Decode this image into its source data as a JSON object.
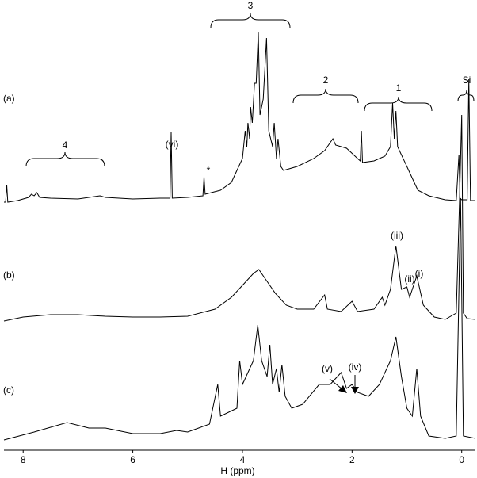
{
  "chart_data": {
    "type": "line",
    "xlabel": "H (ppm)",
    "xlim": [
      8.35,
      -0.25
    ],
    "xticks": [
      8,
      6,
      4,
      2,
      0
    ],
    "series": [
      {
        "name": "(a)",
        "color": "#000000",
        "x": [
          8.35,
          8.32,
          8.3,
          8.28,
          8.1,
          7.9,
          7.85,
          7.8,
          7.75,
          7.7,
          7.5,
          7.0,
          6.6,
          6.5,
          6.0,
          5.5,
          5.32,
          5.3,
          5.28,
          5.0,
          4.72,
          4.7,
          4.68,
          4.4,
          4.2,
          4.1,
          4.0,
          3.95,
          3.92,
          3.9,
          3.87,
          3.85,
          3.82,
          3.78,
          3.75,
          3.71,
          3.68,
          3.62,
          3.56,
          3.52,
          3.45,
          3.42,
          3.38,
          3.35,
          3.3,
          3.25,
          3.0,
          2.7,
          2.5,
          2.35,
          2.3,
          2.1,
          1.9,
          1.85,
          1.83,
          1.81,
          1.6,
          1.4,
          1.3,
          1.26,
          1.23,
          1.2,
          1.17,
          1.0,
          0.9,
          0.8,
          0.6,
          0.3,
          0.1,
          0.05,
          0.03,
          0.0,
          -0.1,
          -0.13,
          -0.16,
          -0.25
        ],
        "values": [
          0,
          0,
          22,
          0,
          2,
          6,
          10,
          8,
          12,
          6,
          5,
          4,
          8,
          6,
          4,
          5,
          5,
          88,
          5,
          6,
          8,
          32,
          10,
          15,
          25,
          40,
          55,
          90,
          70,
          100,
          80,
          120,
          100,
          150,
          150,
          215,
          110,
          130,
          207,
          90,
          70,
          100,
          55,
          80,
          45,
          40,
          45,
          55,
          65,
          80,
          72,
          68,
          55,
          52,
          90,
          50,
          52,
          58,
          70,
          125,
          80,
          115,
          70,
          45,
          30,
          15,
          8,
          3,
          2,
          60,
          5,
          3,
          3,
          155,
          2,
          2
        ]
      },
      {
        "name": "(b)",
        "color": "#000000",
        "x": [
          8.35,
          8.0,
          7.5,
          7.0,
          6.5,
          6.0,
          5.5,
          5.0,
          4.5,
          4.2,
          4.0,
          3.8,
          3.7,
          3.6,
          3.4,
          3.2,
          3.0,
          2.7,
          2.5,
          2.45,
          2.2,
          2.0,
          1.9,
          1.6,
          1.45,
          1.4,
          1.3,
          1.2,
          1.1,
          1.0,
          0.95,
          0.82,
          0.7,
          0.5,
          0.3,
          0.1,
          0.04,
          0.0,
          -0.03,
          -0.1,
          -0.25
        ],
        "values": [
          0,
          5,
          8,
          8,
          6,
          5,
          5,
          6,
          15,
          30,
          45,
          60,
          65,
          55,
          35,
          20,
          15,
          15,
          33,
          15,
          12,
          25,
          12,
          15,
          30,
          20,
          40,
          95,
          40,
          43,
          30,
          57,
          20,
          5,
          2,
          10,
          150,
          260,
          10,
          3,
          2
        ]
      },
      {
        "name": "(c)",
        "color": "#000000",
        "x": [
          8.35,
          7.8,
          7.2,
          6.8,
          6.5,
          6.0,
          5.5,
          5.2,
          5.0,
          4.6,
          4.45,
          4.4,
          4.1,
          4.05,
          4.0,
          3.9,
          3.8,
          3.72,
          3.65,
          3.55,
          3.5,
          3.45,
          3.38,
          3.33,
          3.28,
          3.22,
          3.1,
          2.9,
          2.6,
          2.4,
          2.2,
          2.1,
          2.0,
          1.9,
          1.7,
          1.5,
          1.3,
          1.2,
          1.1,
          1.0,
          0.9,
          0.82,
          0.75,
          0.6,
          0.3,
          0.1,
          0.02,
          -0.03,
          -0.25
        ],
        "values": [
          0,
          10,
          22,
          15,
          15,
          8,
          8,
          12,
          10,
          20,
          70,
          30,
          40,
          100,
          70,
          85,
          100,
          145,
          100,
          80,
          120,
          70,
          90,
          60,
          95,
          55,
          40,
          45,
          70,
          70,
          85,
          65,
          70,
          60,
          55,
          70,
          100,
          130,
          80,
          40,
          30,
          90,
          30,
          5,
          2,
          5,
          305,
          5,
          2
        ]
      }
    ],
    "annotations": [
      "4",
      "(vi)",
      "*",
      "3",
      "2",
      "1",
      "Si",
      "(iii)",
      "(ii)",
      "(i)",
      "(v)",
      "(iv)"
    ]
  }
}
